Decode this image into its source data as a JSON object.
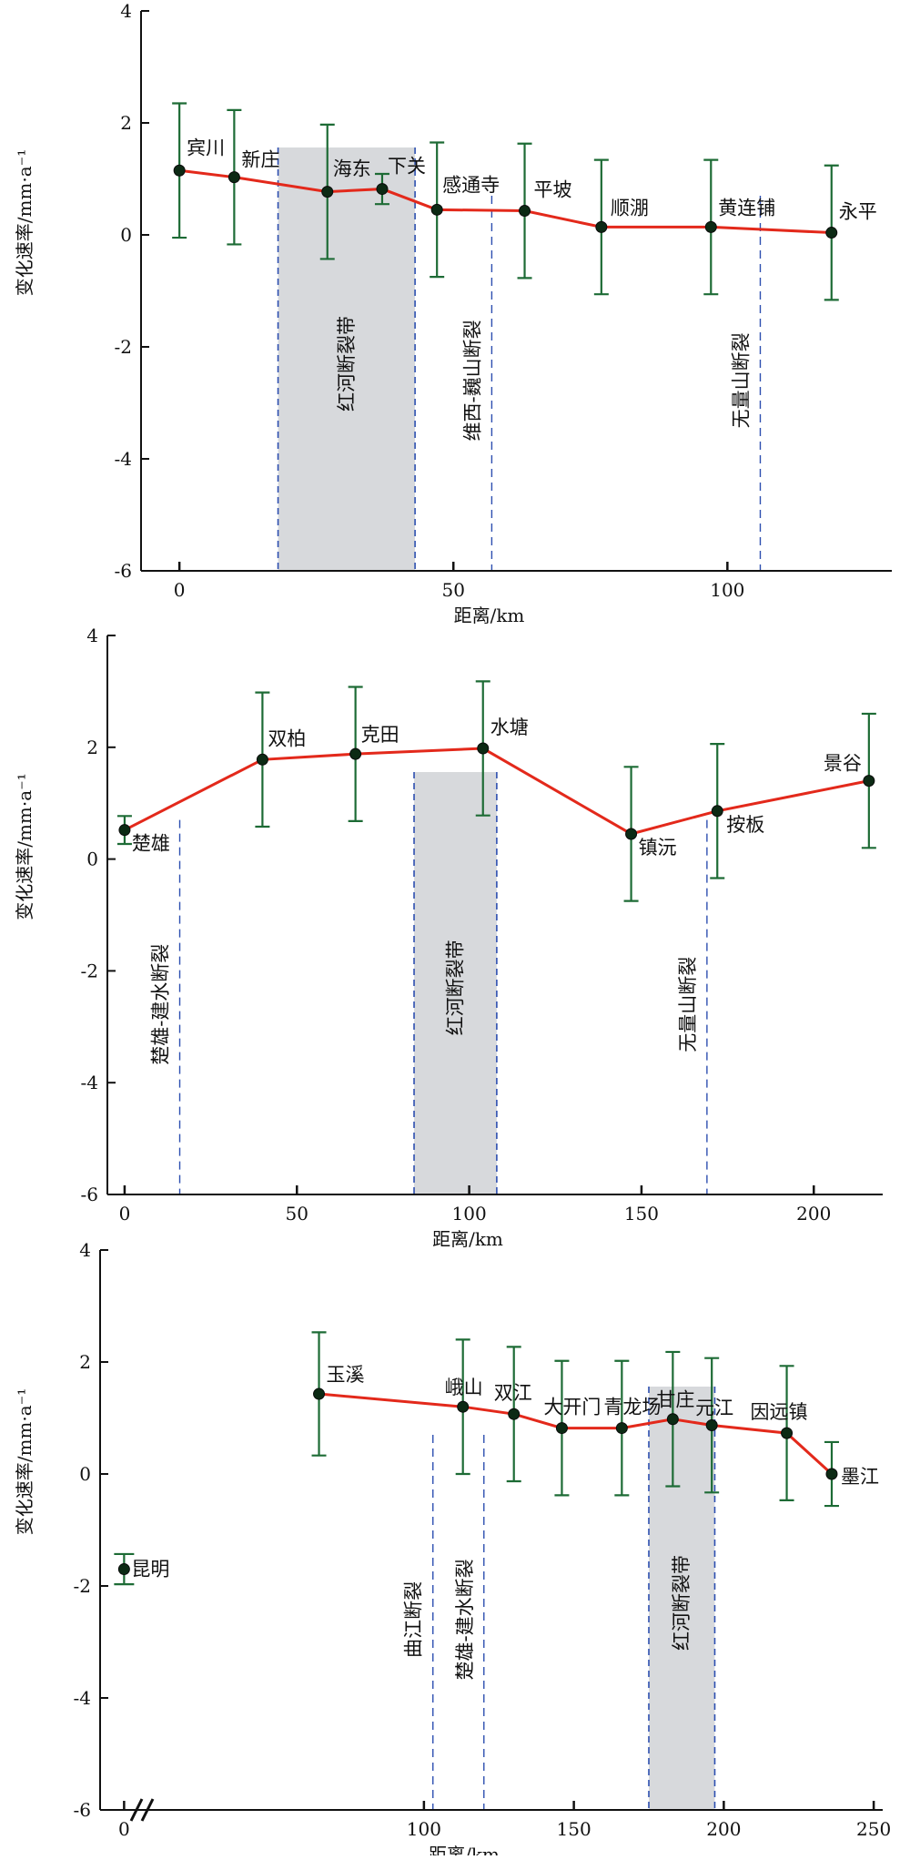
{
  "chart_data": [
    {
      "type": "line",
      "xlabel": "距离/km",
      "ylabel": "变化速率/mm·a⁻¹",
      "xlim": [
        -7,
        130
      ],
      "ylim": [
        -6,
        4
      ],
      "xticks": [
        0,
        50,
        100
      ],
      "yticks": [
        -6,
        -4,
        -2,
        0,
        2,
        4
      ],
      "grid": false,
      "series": [
        {
          "points": [
            {
              "label": "宾川",
              "x": 0,
              "y": 1.15,
              "err": 1.2
            },
            {
              "label": "新庄",
              "x": 10,
              "y": 1.03,
              "err": 1.2
            },
            {
              "label": "海东",
              "x": 27,
              "y": 0.77,
              "err": 1.2
            },
            {
              "label": "下关",
              "x": 37,
              "y": 0.82,
              "err": 0.27
            },
            {
              "label": "感通寺",
              "x": 47,
              "y": 0.45,
              "err": 1.2
            },
            {
              "label": "平坡",
              "x": 63,
              "y": 0.43,
              "err": 1.2
            },
            {
              "label": "顺淜",
              "x": 77,
              "y": 0.14,
              "err": 1.2
            },
            {
              "label": "黄连铺",
              "x": 97,
              "y": 0.14,
              "err": 1.2
            },
            {
              "label": "永平",
              "x": 119,
              "y": 0.04,
              "err": 1.2
            }
          ]
        }
      ],
      "bands": [
        {
          "label": "红河断裂带",
          "x0": 18,
          "x1": 43
        }
      ],
      "faults": [
        {
          "label": "维西-巍山断裂",
          "x": 57
        },
        {
          "label": "无量山断裂",
          "x": 106
        }
      ]
    },
    {
      "type": "line",
      "xlabel": "距离/km",
      "ylabel": "变化速率/mm·a⁻¹",
      "xlim": [
        -5,
        220
      ],
      "ylim": [
        -6,
        4
      ],
      "xticks": [
        0,
        50,
        100,
        150,
        200
      ],
      "yticks": [
        -6,
        -4,
        -2,
        0,
        2,
        4
      ],
      "grid": false,
      "series": [
        {
          "points": [
            {
              "label": "楚雄",
              "x": 0,
              "y": 0.52,
              "err": 0.25
            },
            {
              "label": "双柏",
              "x": 40,
              "y": 1.78,
              "err": 1.2
            },
            {
              "label": "克田",
              "x": 67,
              "y": 1.88,
              "err": 1.2
            },
            {
              "label": "水塘",
              "x": 104,
              "y": 1.98,
              "err": 1.2
            },
            {
              "label": "镇沅",
              "x": 147,
              "y": 0.45,
              "err": 1.2
            },
            {
              "label": "按板",
              "x": 172,
              "y": 0.86,
              "err": 1.2
            },
            {
              "label": "景谷",
              "x": 216,
              "y": 1.4,
              "err": 1.2
            }
          ]
        }
      ],
      "bands": [
        {
          "label": "红河断裂带",
          "x0": 84,
          "x1": 108
        }
      ],
      "faults": [
        {
          "label": "楚雄-建水断裂",
          "x": 16
        },
        {
          "label": "无量山断裂",
          "x": 169
        }
      ]
    },
    {
      "type": "line",
      "xlabel": "距离/km",
      "ylabel": "变化速率/mm·a⁻¹",
      "xlim": [
        -8,
        253
      ],
      "ylim": [
        -6,
        4
      ],
      "xticks": [
        0,
        100,
        150,
        200,
        250
      ],
      "yticks": [
        -6,
        -4,
        -2,
        0,
        2,
        4
      ],
      "grid": false,
      "axis_break": true,
      "standalone_points": [
        {
          "label": "昆明",
          "x": 0,
          "y": -1.7,
          "err": 0.27
        }
      ],
      "series": [
        {
          "points": [
            {
              "label": "玉溪",
              "x": 65,
              "y": 1.43,
              "err": 1.1
            },
            {
              "label": "峨山",
              "x": 113,
              "y": 1.2,
              "err": 1.2
            },
            {
              "label": "双江",
              "x": 130,
              "y": 1.07,
              "err": 1.2
            },
            {
              "label": "大开门",
              "x": 146,
              "y": 0.82,
              "err": 1.2
            },
            {
              "label": "青龙场",
              "x": 166,
              "y": 0.82,
              "err": 1.2
            },
            {
              "label": "甘庄",
              "x": 183,
              "y": 0.98,
              "err": 1.2
            },
            {
              "label": "元江",
              "x": 196,
              "y": 0.87,
              "err": 1.2
            },
            {
              "label": "因远镇",
              "x": 221,
              "y": 0.73,
              "err": 1.2
            },
            {
              "label": "墨江",
              "x": 236,
              "y": 0.0,
              "err": 0.57
            }
          ]
        }
      ],
      "bands": [
        {
          "label": "红河断裂带",
          "x0": 175,
          "x1": 197
        }
      ],
      "faults": [
        {
          "label": "曲江断裂",
          "x": 103
        },
        {
          "label": "楚雄-建水断裂",
          "x": 120
        }
      ]
    }
  ],
  "colors": {
    "line": "#e3291b",
    "errorbar": "#1d6b35",
    "marker": "#0c2a14",
    "band": "#d7d9dc",
    "fault": "#2d4fb0",
    "axis": "#111111"
  }
}
